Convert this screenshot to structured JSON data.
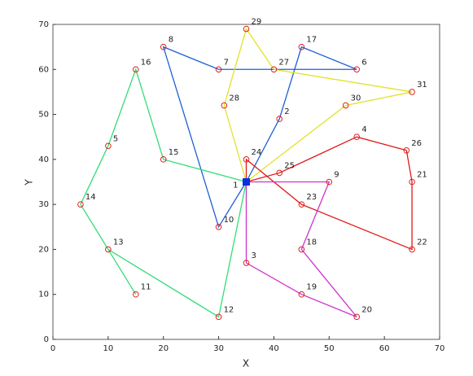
{
  "chart_data": {
    "type": "route",
    "xlabel": "X",
    "ylabel": "Y",
    "xlim": [
      0,
      70
    ],
    "ylim": [
      0,
      70
    ],
    "xticks": [
      0,
      10,
      20,
      30,
      40,
      50,
      60,
      70
    ],
    "yticks": [
      0,
      10,
      20,
      30,
      40,
      50,
      60,
      70
    ],
    "node_color": "#e02020",
    "depot_color": "#0a2fe0",
    "depot": {
      "label": "1",
      "x": 35,
      "y": 35
    },
    "customers": {
      "labels": [
        "2",
        "3",
        "4",
        "5",
        "6",
        "7",
        "8",
        "9",
        "10",
        "11",
        "12",
        "13",
        "14",
        "15",
        "16",
        "17",
        "18",
        "19",
        "20",
        "21",
        "22",
        "23",
        "24",
        "25",
        "26",
        "27",
        "28",
        "29",
        "30",
        "31"
      ],
      "x": [
        41,
        35,
        55,
        10,
        55,
        30,
        20,
        50,
        30,
        15,
        30,
        10,
        5,
        20,
        15,
        45,
        45,
        45,
        55,
        65,
        65,
        45,
        35,
        41,
        64,
        40,
        31,
        35,
        53,
        65
      ],
      "y": [
        49,
        17,
        45,
        43,
        60,
        60,
        65,
        35,
        25,
        10,
        5,
        20,
        30,
        40,
        60,
        65,
        20,
        10,
        5,
        35,
        20,
        30,
        40,
        37,
        42,
        60,
        52,
        69,
        52,
        55
      ]
    },
    "routes": [
      {
        "color": "#1f5fd6",
        "stops": [
          "1",
          "2",
          "17",
          "6",
          "7",
          "8",
          "10",
          "1"
        ]
      },
      {
        "color": "#e2e22a",
        "stops": [
          "1",
          "28",
          "29",
          "27",
          "31",
          "30",
          "1"
        ]
      },
      {
        "color": "#e01818",
        "stops": [
          "1",
          "24",
          "23",
          "22",
          "21",
          "26",
          "4",
          "25",
          "1"
        ]
      },
      {
        "color": "#cc33cc",
        "stops": [
          "1",
          "9",
          "18",
          "20",
          "19",
          "3",
          "1"
        ]
      },
      {
        "color": "#33dd77",
        "stops": [
          "1",
          "15",
          "16",
          "5",
          "14",
          "13",
          "11"
        ]
      },
      {
        "color": "#33dd77",
        "stops": [
          "13",
          "12",
          "1"
        ]
      }
    ]
  }
}
